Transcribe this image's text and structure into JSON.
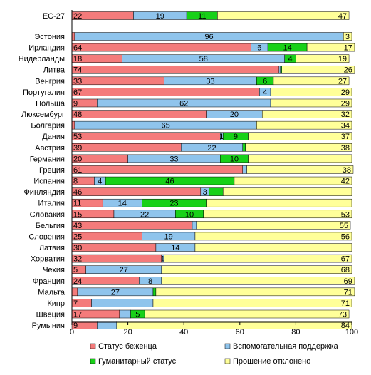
{
  "chart_data": {
    "type": "bar",
    "orientation": "horizontal",
    "stacked": true,
    "categories": [
      "ЕС-27",
      "Эстония",
      "Ирландия",
      "Нидерланды",
      "Литва",
      "Венгрия",
      "Португалия",
      "Польша",
      "Люксембург",
      "Болгария",
      "Дания",
      "Австрия",
      "Германия",
      "Греция",
      "Испания",
      "Финляндия",
      "Италия",
      "Словакия",
      "Бельгия",
      "Словения",
      "Латвия",
      "Хорватия",
      "Чехия",
      "Франция",
      "Мальта",
      "Кипр",
      "Швеция",
      "Румыния"
    ],
    "series": [
      {
        "name": "Статус беженца",
        "color": "#f47b7b",
        "values": [
          22,
          1,
          64,
          18,
          74,
          33,
          67,
          9,
          48,
          1,
          53,
          39,
          20,
          61,
          8,
          46,
          11,
          15,
          43,
          25,
          30,
          32,
          5,
          24,
          2,
          7,
          17,
          9
        ],
        "labels": [
          "22",
          "",
          "64",
          "18",
          "74",
          "33",
          "67",
          "9",
          "48",
          "",
          "53",
          "39",
          "20",
          "61",
          "8",
          "46",
          "11",
          "15",
          "43",
          "25",
          "30",
          "32",
          "5",
          "24",
          "",
          "7",
          "17",
          "9"
        ]
      },
      {
        "name": "Вспомогательная поддержка",
        "color": "#8fc4ec",
        "values": [
          19,
          96,
          6,
          58,
          0.5,
          33,
          4,
          62,
          20,
          65,
          1,
          22,
          33,
          1.5,
          4,
          3,
          14,
          22,
          1.5,
          19,
          14,
          1,
          27,
          8,
          27,
          22,
          4,
          7
        ],
        "labels": [
          "19",
          "96",
          "6",
          "58",
          "",
          "33",
          "4",
          "62",
          "20",
          "65",
          "1",
          "22",
          "33",
          "",
          "4",
          "3",
          "14",
          "22",
          "",
          "19",
          "14",
          "1",
          "27",
          "8",
          "27",
          "",
          "",
          ""
        ]
      },
      {
        "name": "Гуманитарный статус",
        "color": "#18d118",
        "values": [
          11,
          0,
          14,
          4,
          0.5,
          6,
          0,
          0,
          0,
          0,
          9,
          1,
          10,
          0,
          46,
          5,
          23,
          10,
          0,
          0,
          0,
          0,
          0,
          0,
          1,
          0,
          5,
          0
        ],
        "labels": [
          "11",
          "",
          "14",
          "4",
          "",
          "6",
          "",
          "",
          "",
          "",
          "9",
          "",
          "10",
          "",
          "46",
          "",
          "23",
          "10",
          "",
          "",
          "",
          "",
          "",
          "",
          "",
          "",
          "5",
          ""
        ]
      },
      {
        "name": "Прошение отклонено",
        "color": "#ffff99",
        "values": [
          47,
          3,
          17,
          19,
          26,
          27,
          29,
          29,
          32,
          34,
          37,
          38,
          37,
          38,
          42,
          46,
          52,
          53,
          55,
          56,
          56,
          67,
          68,
          69,
          71,
          71,
          73,
          84
        ],
        "labels": [
          "47",
          "3",
          "17",
          "19",
          "26",
          "27",
          "29",
          "29",
          "32",
          "34",
          "37",
          "38",
          "",
          "38",
          "42",
          "",
          "",
          "53",
          "55",
          "56",
          "",
          "67",
          "68",
          "69",
          "71",
          "71",
          "73",
          "84"
        ]
      }
    ],
    "xlim": [
      0,
      100
    ],
    "xticks": [
      "0",
      "20",
      "40",
      "60",
      "80",
      "100"
    ],
    "grid": false,
    "legend_position": "bottom"
  }
}
